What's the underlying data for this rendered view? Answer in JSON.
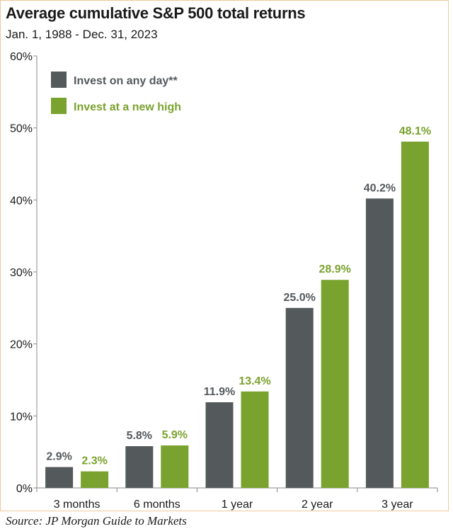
{
  "colors": {
    "series_day": "#54595c",
    "series_high": "#7aa22e",
    "axis": "#888888",
    "border": "#f0c89a"
  },
  "title": "Average cumulative S&P 500 total returns",
  "subtitle": "Jan. 1, 1988 - Dec. 31, 2023",
  "source": "Source: JP Morgan Guide to Markets",
  "chart_data": {
    "type": "bar",
    "title": "Average cumulative S&P 500 total returns",
    "subtitle": "Jan. 1, 1988 - Dec. 31, 2023",
    "categories": [
      "3 months",
      "6 months",
      "1 year",
      "2 year",
      "3 year"
    ],
    "series": [
      {
        "name": "Invest on any day**",
        "color": "#54595c",
        "values": [
          2.9,
          5.8,
          11.9,
          25.0,
          40.2
        ],
        "labels": [
          "2.9%",
          "5.8%",
          "11.9%",
          "25.0%",
          "40.2%"
        ]
      },
      {
        "name": "Invest at a new high",
        "color": "#7aa22e",
        "values": [
          2.3,
          5.9,
          13.4,
          28.9,
          48.1
        ],
        "labels": [
          "2.3%",
          "5.9%",
          "13.4%",
          "28.9%",
          "48.1%"
        ]
      }
    ],
    "ylim": [
      0,
      60
    ],
    "yticks": [
      0,
      10,
      20,
      30,
      40,
      50,
      60
    ],
    "ytick_labels": [
      "0%",
      "10%",
      "20%",
      "30%",
      "40%",
      "50%",
      "60%"
    ],
    "xlabel": "",
    "ylabel": "",
    "grid": false,
    "legend": "top-left"
  }
}
